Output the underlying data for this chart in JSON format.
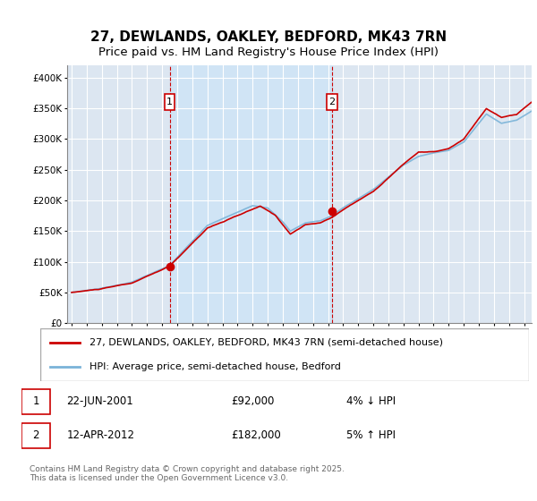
{
  "title": "27, DEWLANDS, OAKLEY, BEDFORD, MK43 7RN",
  "subtitle": "Price paid vs. HM Land Registry's House Price Index (HPI)",
  "ylim": [
    0,
    420000
  ],
  "yticks": [
    0,
    50000,
    100000,
    150000,
    200000,
    250000,
    300000,
    350000,
    400000
  ],
  "ytick_labels": [
    "£0",
    "£50K",
    "£100K",
    "£150K",
    "£200K",
    "£250K",
    "£300K",
    "£350K",
    "£400K"
  ],
  "plot_bg_color": "#dce6f1",
  "shade_color": "#d0e4f5",
  "grid_color": "#ffffff",
  "hpi_color": "#7ab3d8",
  "price_color": "#cc0000",
  "marker1_x": 2001.5,
  "marker2_x": 2012.25,
  "legend_line1": "27, DEWLANDS, OAKLEY, BEDFORD, MK43 7RN (semi-detached house)",
  "legend_line2": "HPI: Average price, semi-detached house, Bedford",
  "row1_label": "1",
  "row1_date": "22-JUN-2001",
  "row1_price": "£92,000",
  "row1_hpi": "4% ↓ HPI",
  "row2_label": "2",
  "row2_date": "12-APR-2012",
  "row2_price": "£182,000",
  "row2_hpi": "5% ↑ HPI",
  "footer": "Contains HM Land Registry data © Crown copyright and database right 2025.\nThis data is licensed under the Open Government Licence v3.0."
}
